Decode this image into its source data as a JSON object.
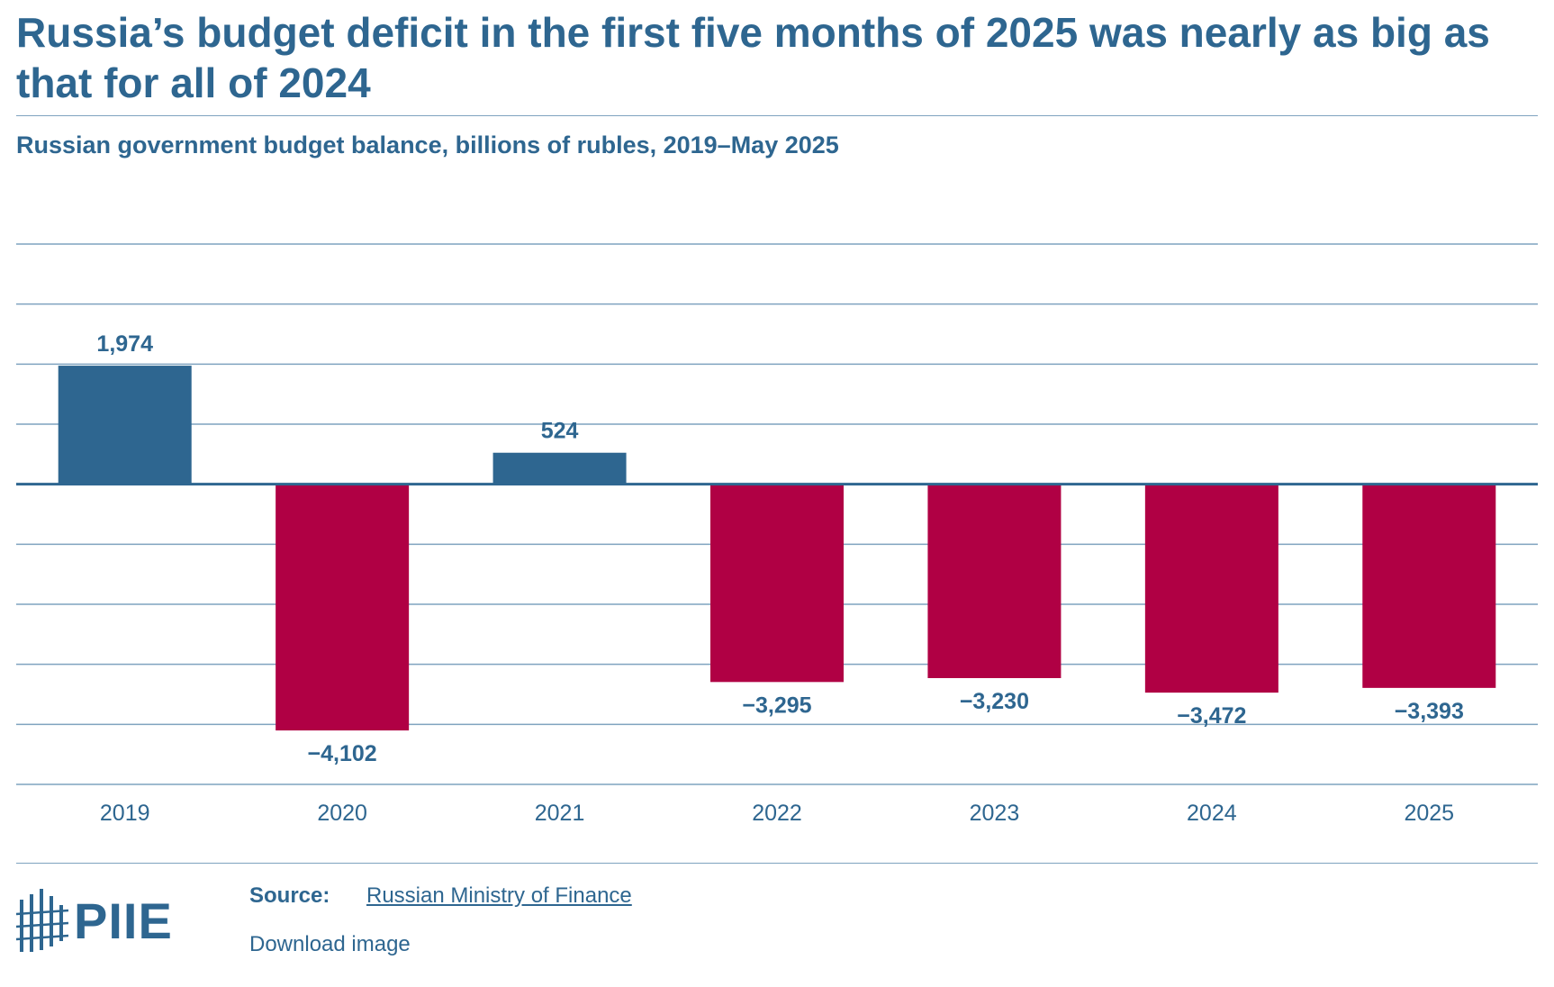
{
  "header": {
    "title": "Russia’s budget deficit in the first five months of 2025 was nearly as big as that for all of 2024",
    "subtitle": "Russian government budget balance, billions of rubles, 2019–May 2025"
  },
  "colors": {
    "positive": "#2e6690",
    "negative": "#b00044",
    "text": "#2e6690",
    "grid": "#7fa3bf"
  },
  "chart_data": {
    "type": "bar",
    "title": "Russia’s budget deficit in the first five months of 2025 was nearly as big as that for all of 2024",
    "subtitle": "Russian government budget balance, billions of rubles, 2019–May 2025",
    "categories": [
      "2019",
      "2020",
      "2021",
      "2022",
      "2023",
      "2024",
      "2025"
    ],
    "values": [
      1974,
      -4102,
      524,
      -3295,
      -3230,
      -3472,
      -3393
    ],
    "value_labels": [
      "1,974",
      "−4,102",
      "524",
      "−3,295",
      "−3,230",
      "−3,472",
      "−3,393"
    ],
    "ylim": [
      -5000,
      4000
    ],
    "grid_step": 1000,
    "grid": true,
    "y_tick_labels_shown": false,
    "xlabel": "",
    "ylabel": ""
  },
  "footer": {
    "source_label": "Source:",
    "source_text": "Russian Ministry of Finance",
    "download_label": "Download image",
    "logo_text": "PIIE"
  }
}
